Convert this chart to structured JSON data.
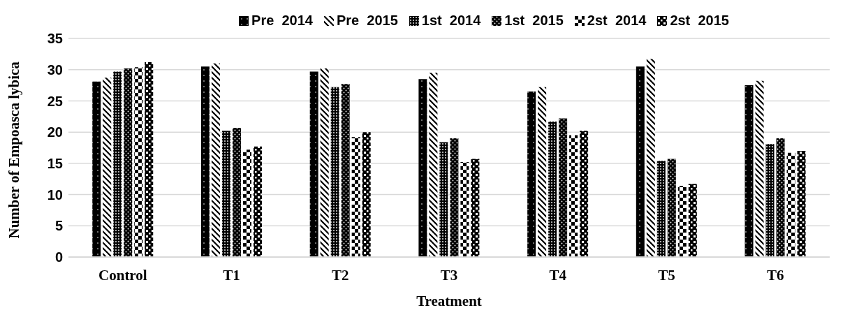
{
  "chart_data": {
    "type": "bar",
    "xlabel": "Treatment",
    "ylabel": "Number of Empoasca lybica",
    "categories": [
      "Control",
      "T1",
      "T2",
      "T3",
      "T4",
      "T5",
      "T6"
    ],
    "series": [
      {
        "name": "Pre  2014",
        "color": "#000000",
        "values": [
          28.1,
          30.5,
          29.7,
          28.5,
          26.5,
          30.5,
          27.5
        ]
      },
      {
        "name": "Pre  2015",
        "color": "#000000",
        "values": [
          28.7,
          31.0,
          30.2,
          29.5,
          27.2,
          31.7,
          28.2
        ]
      },
      {
        "name": "1st  2014",
        "color": "#000000",
        "values": [
          29.7,
          20.2,
          27.2,
          18.4,
          21.7,
          15.4,
          18.1
        ]
      },
      {
        "name": "1st  2015",
        "color": "#000000",
        "values": [
          30.2,
          20.7,
          27.7,
          19.0,
          22.2,
          15.7,
          19.0
        ]
      },
      {
        "name": "2st  2014",
        "color": "#000000",
        "values": [
          30.4,
          17.2,
          19.2,
          15.2,
          19.5,
          11.4,
          16.7
        ]
      },
      {
        "name": "2st  2015",
        "color": "#000000",
        "values": [
          31.2,
          17.7,
          20.0,
          15.7,
          20.2,
          11.7,
          17.0
        ]
      }
    ],
    "ylim": [
      0,
      35
    ],
    "yticks": [
      0,
      5,
      10,
      15,
      20,
      25,
      30,
      35
    ],
    "grid": "y",
    "legend": "top"
  }
}
